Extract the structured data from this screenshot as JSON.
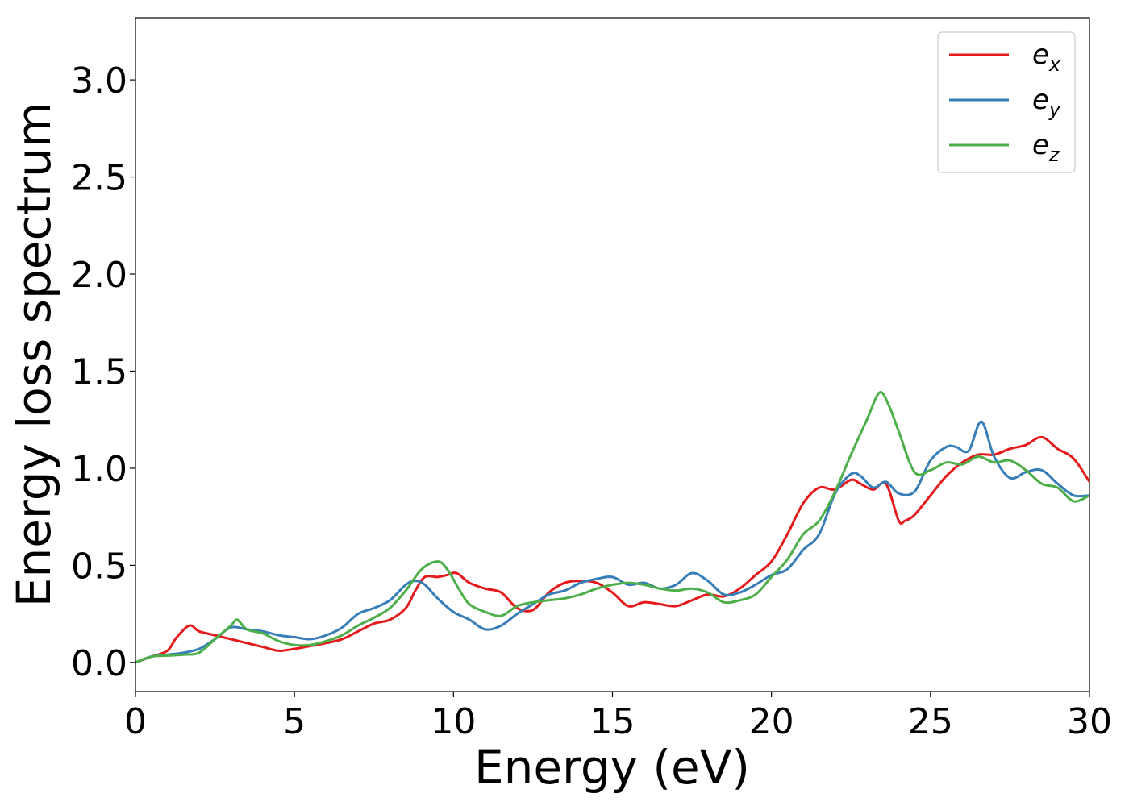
{
  "chart_data": {
    "type": "line",
    "title": "",
    "xlabel": "Energy (eV)",
    "ylabel": "Energy loss spectrum",
    "xlim": [
      0,
      30
    ],
    "ylim": [
      -0.15,
      3.32
    ],
    "xticks": [
      0,
      5,
      10,
      15,
      20,
      25,
      30
    ],
    "xtick_labels": [
      "0",
      "5",
      "10",
      "15",
      "20",
      "25",
      "30"
    ],
    "yticks": [
      0.0,
      0.5,
      1.0,
      1.5,
      2.0,
      2.5,
      3.0
    ],
    "ytick_labels": [
      "0.0",
      "0.5",
      "1.0",
      "1.5",
      "2.0",
      "2.5",
      "3.0"
    ],
    "grid": false,
    "legend_position": "top-right",
    "series": [
      {
        "name": "e",
        "subscript": "x",
        "color": "#e41a1c",
        "x": [
          0,
          0.5,
          1.0,
          1.3,
          1.7,
          2.0,
          2.5,
          3.0,
          3.5,
          4.0,
          4.5,
          5.0,
          5.5,
          6.0,
          6.5,
          7.0,
          7.5,
          8.0,
          8.5,
          8.8,
          9.1,
          9.5,
          9.8,
          10.1,
          10.5,
          11.0,
          11.5,
          12.0,
          12.5,
          13.0,
          13.5,
          14.0,
          14.5,
          15.0,
          15.5,
          16.0,
          16.5,
          17.0,
          17.5,
          18.0,
          18.5,
          19.0,
          19.5,
          20.0,
          20.5,
          21.0,
          21.5,
          22.0,
          22.5,
          22.8,
          23.2,
          23.6,
          24.0,
          24.2,
          24.5,
          25.0,
          25.5,
          26.0,
          26.5,
          27.0,
          27.5,
          28.0,
          28.5,
          29.0,
          29.5,
          30.0
        ],
        "y": [
          0.0,
          0.03,
          0.06,
          0.13,
          0.19,
          0.16,
          0.14,
          0.12,
          0.1,
          0.08,
          0.06,
          0.07,
          0.085,
          0.1,
          0.12,
          0.16,
          0.2,
          0.22,
          0.28,
          0.37,
          0.44,
          0.44,
          0.45,
          0.46,
          0.41,
          0.38,
          0.36,
          0.28,
          0.27,
          0.36,
          0.41,
          0.42,
          0.41,
          0.36,
          0.29,
          0.31,
          0.3,
          0.29,
          0.32,
          0.35,
          0.34,
          0.38,
          0.45,
          0.52,
          0.66,
          0.82,
          0.9,
          0.89,
          0.94,
          0.92,
          0.89,
          0.92,
          0.73,
          0.73,
          0.76,
          0.86,
          0.96,
          1.03,
          1.07,
          1.07,
          1.1,
          1.12,
          1.16,
          1.1,
          1.05,
          0.93
        ]
      },
      {
        "name": "e",
        "subscript": "y",
        "color": "#377eb8",
        "x": [
          0,
          0.5,
          1.0,
          1.5,
          2.0,
          2.5,
          3.0,
          3.5,
          4.0,
          4.5,
          5.0,
          5.5,
          6.0,
          6.5,
          7.0,
          7.5,
          8.0,
          8.5,
          8.8,
          9.1,
          9.5,
          10.0,
          10.5,
          11.0,
          11.5,
          12.0,
          12.5,
          13.0,
          13.5,
          14.0,
          14.5,
          15.0,
          15.5,
          16.0,
          16.5,
          17.0,
          17.5,
          18.0,
          18.5,
          19.0,
          19.5,
          20.0,
          20.5,
          21.0,
          21.5,
          22.0,
          22.5,
          22.8,
          23.2,
          23.6,
          24.0,
          24.5,
          25.0,
          25.5,
          25.8,
          26.2,
          26.6,
          27.0,
          27.5,
          28.0,
          28.5,
          29.0,
          29.5,
          30.0
        ],
        "y": [
          0.0,
          0.03,
          0.04,
          0.05,
          0.07,
          0.12,
          0.18,
          0.17,
          0.16,
          0.14,
          0.13,
          0.12,
          0.14,
          0.18,
          0.25,
          0.28,
          0.32,
          0.4,
          0.42,
          0.4,
          0.33,
          0.26,
          0.22,
          0.17,
          0.19,
          0.25,
          0.3,
          0.35,
          0.37,
          0.41,
          0.43,
          0.44,
          0.4,
          0.41,
          0.38,
          0.4,
          0.46,
          0.42,
          0.35,
          0.36,
          0.4,
          0.45,
          0.48,
          0.58,
          0.66,
          0.87,
          0.97,
          0.96,
          0.9,
          0.93,
          0.87,
          0.88,
          1.04,
          1.11,
          1.11,
          1.09,
          1.24,
          1.06,
          0.95,
          0.98,
          0.99,
          0.92,
          0.86,
          0.86
        ]
      },
      {
        "name": "e",
        "subscript": "z",
        "color": "#4daf4a",
        "x": [
          0,
          0.5,
          1.0,
          1.5,
          2.0,
          2.5,
          3.0,
          3.2,
          3.5,
          4.0,
          4.5,
          5.0,
          5.5,
          6.0,
          6.5,
          7.0,
          7.5,
          8.0,
          8.5,
          9.0,
          9.5,
          9.8,
          10.2,
          10.5,
          11.0,
          11.5,
          12.0,
          12.5,
          13.0,
          13.5,
          14.0,
          14.5,
          15.0,
          15.5,
          16.0,
          16.5,
          17.0,
          17.5,
          18.0,
          18.5,
          19.0,
          19.5,
          20.0,
          20.5,
          21.0,
          21.5,
          22.0,
          22.5,
          23.0,
          23.4,
          23.7,
          24.0,
          24.5,
          25.0,
          25.5,
          26.0,
          26.5,
          27.0,
          27.5,
          28.0,
          28.5,
          29.0,
          29.5,
          30.0
        ],
        "y": [
          0.0,
          0.03,
          0.035,
          0.04,
          0.05,
          0.12,
          0.19,
          0.22,
          0.17,
          0.15,
          0.11,
          0.09,
          0.09,
          0.11,
          0.14,
          0.19,
          0.23,
          0.28,
          0.37,
          0.48,
          0.52,
          0.48,
          0.37,
          0.3,
          0.26,
          0.24,
          0.29,
          0.31,
          0.32,
          0.33,
          0.35,
          0.38,
          0.4,
          0.41,
          0.4,
          0.38,
          0.37,
          0.38,
          0.36,
          0.31,
          0.32,
          0.35,
          0.44,
          0.53,
          0.66,
          0.73,
          0.88,
          1.07,
          1.25,
          1.39,
          1.32,
          1.19,
          0.98,
          0.99,
          1.03,
          1.02,
          1.06,
          1.03,
          1.04,
          0.99,
          0.92,
          0.9,
          0.83,
          0.86
        ]
      }
    ]
  }
}
